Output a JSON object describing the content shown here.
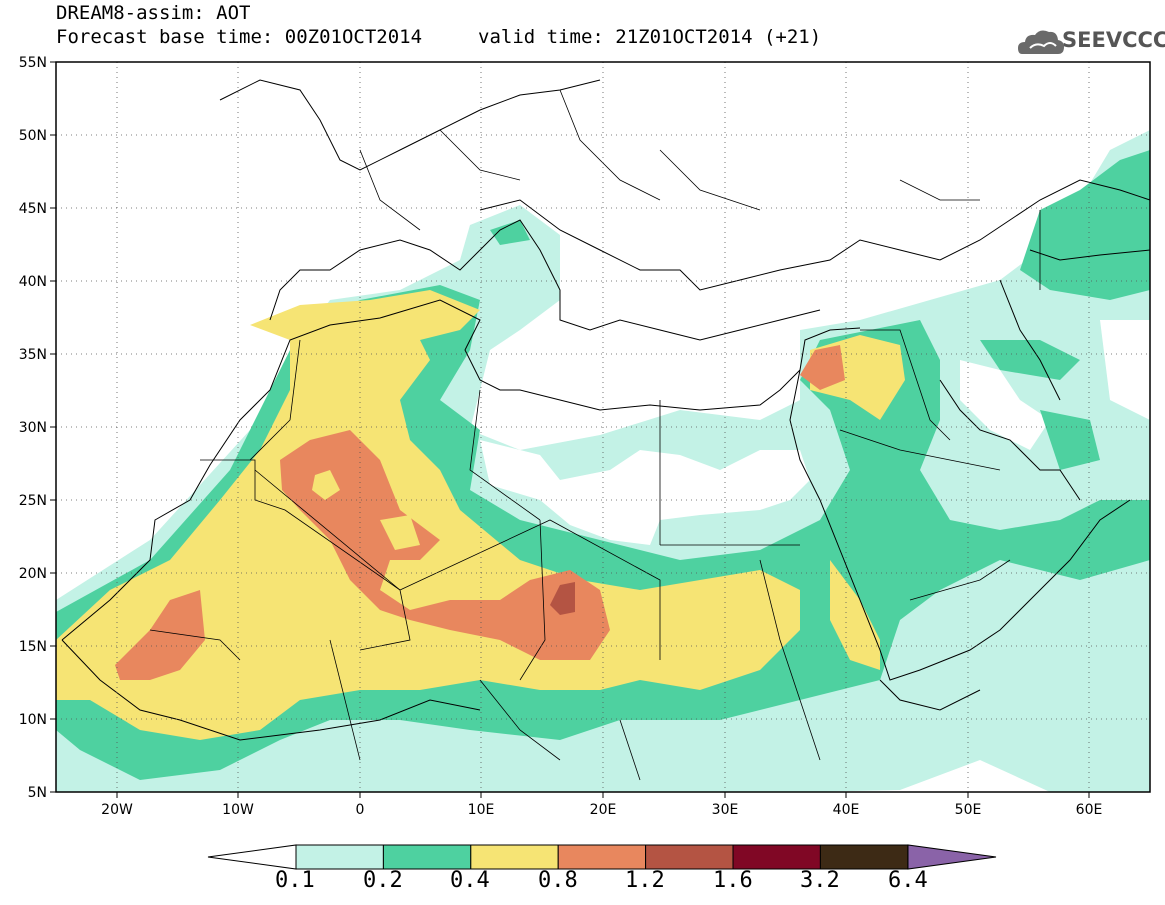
{
  "title": {
    "line1": "DREAM8-assim: AOT",
    "base_time": "Forecast base time: 00Z01OCT2014",
    "valid_time": "valid time: 21Z01OCT2014 (+21)"
  },
  "logo": {
    "text": "SEEVCCC",
    "icon": "cloud-icon"
  },
  "map": {
    "lat_ticks": [
      "55N",
      "50N",
      "45N",
      "40N",
      "35N",
      "30N",
      "25N",
      "20N",
      "15N",
      "10N",
      "5N"
    ],
    "lon_ticks": [
      "20W",
      "10W",
      "0",
      "10E",
      "20E",
      "30E",
      "40E",
      "50E",
      "60E"
    ],
    "lat_range": [
      5,
      55
    ],
    "lon_range": [
      -25,
      65
    ],
    "grid": "dotted"
  },
  "colorbar": {
    "labels": [
      "0.1",
      "0.2",
      "0.4",
      "0.8",
      "1.2",
      "1.6",
      "3.2",
      "6.4"
    ],
    "colors": [
      "#c3f2e6",
      "#4ed1a0",
      "#f6e474",
      "#e8875e",
      "#b45443",
      "#800725",
      "#3d2a15"
    ],
    "under_color": "#ffffff",
    "over_color": "#8a63a8"
  },
  "palette": {
    "c01": "#c3f2e6",
    "c02": "#4ed1a0",
    "c04": "#f6e474",
    "c08": "#e8875e",
    "c12": "#b45443"
  }
}
